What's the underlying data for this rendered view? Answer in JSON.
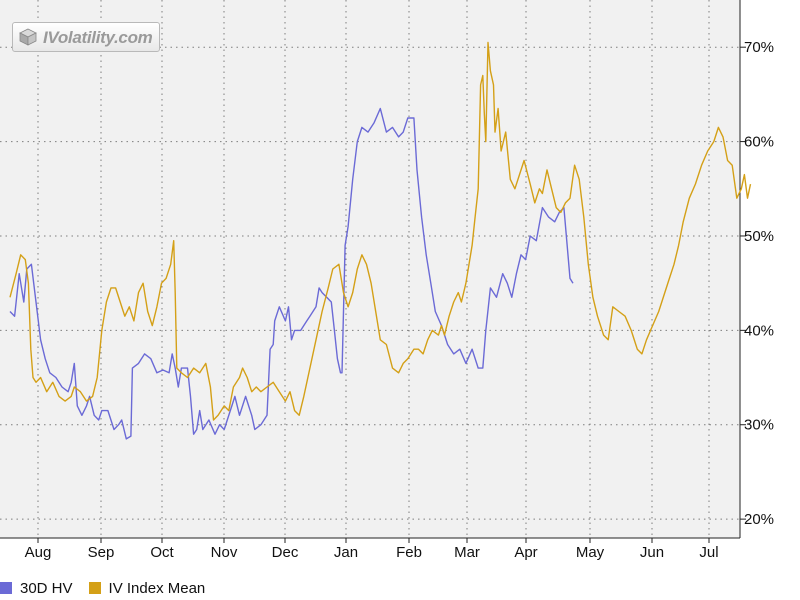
{
  "logo": {
    "text": "IVolatility.com"
  },
  "colors": {
    "hv": "#6b6ad6",
    "iv": "#d4a017",
    "plot_bg": "#f1f1f1",
    "grid": "#7d7d7d"
  },
  "chart_data": {
    "type": "line",
    "title": "",
    "xlabel": "",
    "ylabel": "",
    "ylim": [
      18,
      75
    ],
    "y_ticks": [
      20,
      30,
      40,
      50,
      60,
      70
    ],
    "y_tick_labels": [
      "20%",
      "30%",
      "40%",
      "50%",
      "60%",
      "70%"
    ],
    "x_ticks": [
      "Aug",
      "Sep",
      "Oct",
      "Nov",
      "Dec",
      "Jan",
      "Feb",
      "Mar",
      "Apr",
      "May",
      "Jun",
      "Jul"
    ],
    "grid": true,
    "legend_position": "bottom-left",
    "series": [
      {
        "name": "30D HV",
        "color": "#6b6ad6",
        "points": [
          [
            0.0,
            42.0
          ],
          [
            0.15,
            41.5
          ],
          [
            0.3,
            46.0
          ],
          [
            0.45,
            43.0
          ],
          [
            0.55,
            46.5
          ],
          [
            0.7,
            47.0
          ],
          [
            0.85,
            43.0
          ],
          [
            1.0,
            39.0
          ],
          [
            1.15,
            37.0
          ],
          [
            1.3,
            35.5
          ],
          [
            1.5,
            35.0
          ],
          [
            1.7,
            34.0
          ],
          [
            1.9,
            33.5
          ],
          [
            2.0,
            34.5
          ],
          [
            2.1,
            36.5
          ],
          [
            2.2,
            32.0
          ],
          [
            2.35,
            31.0
          ],
          [
            2.5,
            32.0
          ],
          [
            2.6,
            33.0
          ],
          [
            2.75,
            31.0
          ],
          [
            2.9,
            30.5
          ],
          [
            3.0,
            31.5
          ],
          [
            3.2,
            31.5
          ],
          [
            3.4,
            29.5
          ],
          [
            3.55,
            30.0
          ],
          [
            3.65,
            30.5
          ],
          [
            3.8,
            28.5
          ],
          [
            3.95,
            28.8
          ],
          [
            4.0,
            36.0
          ],
          [
            4.2,
            36.5
          ],
          [
            4.4,
            37.5
          ],
          [
            4.6,
            37.0
          ],
          [
            4.8,
            35.5
          ],
          [
            5.0,
            35.8
          ],
          [
            5.2,
            35.5
          ],
          [
            5.3,
            37.5
          ],
          [
            5.4,
            36.0
          ],
          [
            5.5,
            34.0
          ],
          [
            5.6,
            36.0
          ],
          [
            5.8,
            36.0
          ],
          [
            5.9,
            33.0
          ],
          [
            6.0,
            29.0
          ],
          [
            6.1,
            29.5
          ],
          [
            6.2,
            31.5
          ],
          [
            6.3,
            29.5
          ],
          [
            6.5,
            30.5
          ],
          [
            6.7,
            29.0
          ],
          [
            6.85,
            30.0
          ],
          [
            7.0,
            29.5
          ],
          [
            7.2,
            31.5
          ],
          [
            7.35,
            33.0
          ],
          [
            7.5,
            31.0
          ],
          [
            7.7,
            33.0
          ],
          [
            7.9,
            31.0
          ],
          [
            8.0,
            29.5
          ],
          [
            8.2,
            30.0
          ],
          [
            8.4,
            31.0
          ],
          [
            8.5,
            38.0
          ],
          [
            8.6,
            38.5
          ],
          [
            8.65,
            41.0
          ],
          [
            8.8,
            42.5
          ],
          [
            9.0,
            41.0
          ],
          [
            9.1,
            42.5
          ],
          [
            9.2,
            39.0
          ],
          [
            9.3,
            40.0
          ],
          [
            9.5,
            40.0
          ],
          [
            9.7,
            41.0
          ],
          [
            9.8,
            41.5
          ],
          [
            10.0,
            42.5
          ],
          [
            10.1,
            44.5
          ],
          [
            10.2,
            44.0
          ],
          [
            10.35,
            43.5
          ],
          [
            10.5,
            43.0
          ],
          [
            10.6,
            40.0
          ],
          [
            10.7,
            37.0
          ],
          [
            10.8,
            35.5
          ],
          [
            10.85,
            35.5
          ],
          [
            10.95,
            49.0
          ],
          [
            11.05,
            51.0
          ],
          [
            11.2,
            56.0
          ],
          [
            11.35,
            60.0
          ],
          [
            11.5,
            61.5
          ],
          [
            11.7,
            61.0
          ],
          [
            11.9,
            62.0
          ],
          [
            12.1,
            63.5
          ],
          [
            12.3,
            61.0
          ],
          [
            12.5,
            61.5
          ],
          [
            12.7,
            60.5
          ],
          [
            12.85,
            61.0
          ],
          [
            13.0,
            62.5
          ],
          [
            13.2,
            62.5
          ],
          [
            13.3,
            57.0
          ],
          [
            13.45,
            52.0
          ],
          [
            13.6,
            48.0
          ],
          [
            13.75,
            45.0
          ],
          [
            13.9,
            42.0
          ],
          [
            14.1,
            40.5
          ],
          [
            14.3,
            38.5
          ],
          [
            14.5,
            37.5
          ],
          [
            14.7,
            38.0
          ],
          [
            14.9,
            36.5
          ],
          [
            15.1,
            38.0
          ],
          [
            15.3,
            36.0
          ],
          [
            15.45,
            36.0
          ],
          [
            15.55,
            40.0
          ],
          [
            15.7,
            44.5
          ],
          [
            15.9,
            43.5
          ],
          [
            16.1,
            46.0
          ],
          [
            16.25,
            45.0
          ],
          [
            16.4,
            43.5
          ],
          [
            16.55,
            46.0
          ],
          [
            16.7,
            48.0
          ],
          [
            16.85,
            47.5
          ],
          [
            17.0,
            50.0
          ],
          [
            17.2,
            49.5
          ],
          [
            17.4,
            53.0
          ],
          [
            17.6,
            52.0
          ],
          [
            17.8,
            51.5
          ],
          [
            17.95,
            52.5
          ],
          [
            18.1,
            53.0
          ],
          [
            18.3,
            45.5
          ],
          [
            18.4,
            45.0
          ]
        ]
      },
      {
        "name": "IV Index Mean",
        "color": "#d4a017",
        "points": [
          [
            0.0,
            43.5
          ],
          [
            0.2,
            46.0
          ],
          [
            0.35,
            48.0
          ],
          [
            0.5,
            47.5
          ],
          [
            0.6,
            45.0
          ],
          [
            0.68,
            38.0
          ],
          [
            0.75,
            35.0
          ],
          [
            0.85,
            34.5
          ],
          [
            1.0,
            35.0
          ],
          [
            1.2,
            33.5
          ],
          [
            1.4,
            34.5
          ],
          [
            1.6,
            33.0
          ],
          [
            1.8,
            32.5
          ],
          [
            2.0,
            33.0
          ],
          [
            2.1,
            34.0
          ],
          [
            2.3,
            33.5
          ],
          [
            2.5,
            32.5
          ],
          [
            2.7,
            33.0
          ],
          [
            2.85,
            35.0
          ],
          [
            3.0,
            40.0
          ],
          [
            3.15,
            43.0
          ],
          [
            3.3,
            44.5
          ],
          [
            3.45,
            44.5
          ],
          [
            3.6,
            43.0
          ],
          [
            3.75,
            41.5
          ],
          [
            3.9,
            42.5
          ],
          [
            4.05,
            41.0
          ],
          [
            4.2,
            44.0
          ],
          [
            4.35,
            45.0
          ],
          [
            4.5,
            42.0
          ],
          [
            4.65,
            40.5
          ],
          [
            4.8,
            42.5
          ],
          [
            4.95,
            45.0
          ],
          [
            5.1,
            45.5
          ],
          [
            5.25,
            47.0
          ],
          [
            5.35,
            49.5
          ],
          [
            5.4,
            44.0
          ],
          [
            5.45,
            36.0
          ],
          [
            5.6,
            35.5
          ],
          [
            5.8,
            35.0
          ],
          [
            6.0,
            36.0
          ],
          [
            6.2,
            35.5
          ],
          [
            6.4,
            36.5
          ],
          [
            6.55,
            34.0
          ],
          [
            6.65,
            30.5
          ],
          [
            6.8,
            31.0
          ],
          [
            7.0,
            32.0
          ],
          [
            7.15,
            31.5
          ],
          [
            7.3,
            34.0
          ],
          [
            7.5,
            35.0
          ],
          [
            7.6,
            36.0
          ],
          [
            7.75,
            35.0
          ],
          [
            7.9,
            33.5
          ],
          [
            8.05,
            34.0
          ],
          [
            8.2,
            33.5
          ],
          [
            8.4,
            34.0
          ],
          [
            8.6,
            34.5
          ],
          [
            8.8,
            33.5
          ],
          [
            9.0,
            32.5
          ],
          [
            9.15,
            33.5
          ],
          [
            9.3,
            31.5
          ],
          [
            9.45,
            31.0
          ],
          [
            9.6,
            33.0
          ],
          [
            9.8,
            36.0
          ],
          [
            10.0,
            39.0
          ],
          [
            10.2,
            42.0
          ],
          [
            10.4,
            44.5
          ],
          [
            10.55,
            46.5
          ],
          [
            10.75,
            47.0
          ],
          [
            10.9,
            44.0
          ],
          [
            11.05,
            42.5
          ],
          [
            11.2,
            44.0
          ],
          [
            11.35,
            46.5
          ],
          [
            11.5,
            48.0
          ],
          [
            11.65,
            47.0
          ],
          [
            11.8,
            45.0
          ],
          [
            11.95,
            42.0
          ],
          [
            12.1,
            39.0
          ],
          [
            12.3,
            38.5
          ],
          [
            12.5,
            36.0
          ],
          [
            12.7,
            35.5
          ],
          [
            12.85,
            36.5
          ],
          [
            13.0,
            37.0
          ],
          [
            13.2,
            38.0
          ],
          [
            13.35,
            38.0
          ],
          [
            13.5,
            37.5
          ],
          [
            13.65,
            39.0
          ],
          [
            13.8,
            40.0
          ],
          [
            14.0,
            39.5
          ],
          [
            14.1,
            40.5
          ],
          [
            14.2,
            39.5
          ],
          [
            14.35,
            41.5
          ],
          [
            14.5,
            43.0
          ],
          [
            14.65,
            44.0
          ],
          [
            14.75,
            43.0
          ],
          [
            14.9,
            45.0
          ],
          [
            15.0,
            47.0
          ],
          [
            15.1,
            49.0
          ],
          [
            15.2,
            52.0
          ],
          [
            15.3,
            55.0
          ],
          [
            15.38,
            66.0
          ],
          [
            15.45,
            67.0
          ],
          [
            15.5,
            63.0
          ],
          [
            15.55,
            60.0
          ],
          [
            15.62,
            70.5
          ],
          [
            15.7,
            67.5
          ],
          [
            15.8,
            66.0
          ],
          [
            15.85,
            61.0
          ],
          [
            15.95,
            63.5
          ],
          [
            16.05,
            59.0
          ],
          [
            16.2,
            61.0
          ],
          [
            16.35,
            56.0
          ],
          [
            16.5,
            55.0
          ],
          [
            16.65,
            56.5
          ],
          [
            16.8,
            58.0
          ],
          [
            17.0,
            55.5
          ],
          [
            17.15,
            53.5
          ],
          [
            17.3,
            55.0
          ],
          [
            17.4,
            54.5
          ],
          [
            17.55,
            57.0
          ],
          [
            17.7,
            55.0
          ],
          [
            17.85,
            53.0
          ],
          [
            18.0,
            52.5
          ],
          [
            18.15,
            53.5
          ],
          [
            18.3,
            54.0
          ],
          [
            18.45,
            57.5
          ],
          [
            18.6,
            56.0
          ],
          [
            18.75,
            52.0
          ],
          [
            18.9,
            47.0
          ],
          [
            19.05,
            43.5
          ],
          [
            19.2,
            41.5
          ],
          [
            19.4,
            39.5
          ],
          [
            19.55,
            39.0
          ],
          [
            19.7,
            42.5
          ],
          [
            19.9,
            42.0
          ],
          [
            20.1,
            41.5
          ],
          [
            20.3,
            40.0
          ],
          [
            20.5,
            38.0
          ],
          [
            20.65,
            37.5
          ],
          [
            20.8,
            39.0
          ],
          [
            21.0,
            40.5
          ],
          [
            21.2,
            42.0
          ],
          [
            21.4,
            44.0
          ],
          [
            21.55,
            45.5
          ],
          [
            21.7,
            47.0
          ],
          [
            21.85,
            49.0
          ],
          [
            22.0,
            51.5
          ],
          [
            22.2,
            54.0
          ],
          [
            22.4,
            55.5
          ],
          [
            22.6,
            57.5
          ],
          [
            22.8,
            59.0
          ],
          [
            23.0,
            60.0
          ],
          [
            23.15,
            61.5
          ],
          [
            23.3,
            60.5
          ],
          [
            23.45,
            58.0
          ],
          [
            23.6,
            57.5
          ],
          [
            23.75,
            54.0
          ],
          [
            23.9,
            55.0
          ],
          [
            24.0,
            56.5
          ],
          [
            24.1,
            54.0
          ],
          [
            24.2,
            55.5
          ]
        ]
      }
    ]
  }
}
